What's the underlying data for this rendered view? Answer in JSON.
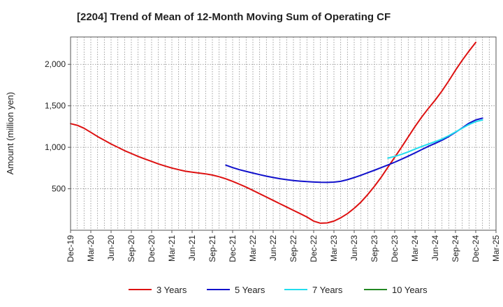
{
  "chart_data": {
    "type": "line",
    "title": "[2204]  Trend of Mean of 12-Month Moving Sum of Operating CF",
    "xlabel": "",
    "ylabel": "Amount (million yen)",
    "ylim": [
      0,
      2330
    ],
    "yticks": [
      500,
      1000,
      1500,
      2000
    ],
    "ytick_labels": [
      "500",
      "1,000",
      "1,500",
      "2,000"
    ],
    "xlim": [
      "2019-12",
      "2025-03"
    ],
    "xtick_labels": [
      "Dec-19",
      "Mar-20",
      "Jun-20",
      "Sep-20",
      "Dec-20",
      "Mar-21",
      "Jun-21",
      "Sep-21",
      "Dec-21",
      "Mar-22",
      "Jun-22",
      "Sep-22",
      "Dec-22",
      "Mar-23",
      "Jun-23",
      "Sep-23",
      "Dec-23",
      "Mar-24",
      "Jun-24",
      "Sep-24",
      "Dec-24",
      "Mar-25"
    ],
    "grid": true,
    "legend_position": "bottom",
    "series": [
      {
        "name": "3 Years",
        "color": "#dd1111",
        "points": [
          [
            "2019-12",
            1285
          ],
          [
            "2020-01",
            1265
          ],
          [
            "2020-02",
            1230
          ],
          [
            "2020-03",
            1180
          ],
          [
            "2020-04",
            1130
          ],
          [
            "2020-05",
            1085
          ],
          [
            "2020-06",
            1040
          ],
          [
            "2020-07",
            1000
          ],
          [
            "2020-08",
            960
          ],
          [
            "2020-09",
            925
          ],
          [
            "2020-10",
            890
          ],
          [
            "2020-11",
            860
          ],
          [
            "2020-12",
            830
          ],
          [
            "2021-01",
            800
          ],
          [
            "2021-02",
            775
          ],
          [
            "2021-03",
            750
          ],
          [
            "2021-04",
            730
          ],
          [
            "2021-05",
            712
          ],
          [
            "2021-06",
            700
          ],
          [
            "2021-07",
            690
          ],
          [
            "2021-08",
            680
          ],
          [
            "2021-09",
            665
          ],
          [
            "2021-10",
            645
          ],
          [
            "2021-11",
            620
          ],
          [
            "2021-12",
            590
          ],
          [
            "2022-01",
            555
          ],
          [
            "2022-02",
            520
          ],
          [
            "2022-03",
            480
          ],
          [
            "2022-04",
            440
          ],
          [
            "2022-05",
            400
          ],
          [
            "2022-06",
            360
          ],
          [
            "2022-07",
            320
          ],
          [
            "2022-08",
            280
          ],
          [
            "2022-09",
            240
          ],
          [
            "2022-10",
            200
          ],
          [
            "2022-11",
            160
          ],
          [
            "2022-12",
            110
          ],
          [
            "2023-01",
            85
          ],
          [
            "2023-02",
            88
          ],
          [
            "2023-03",
            110
          ],
          [
            "2023-04",
            150
          ],
          [
            "2023-05",
            200
          ],
          [
            "2023-06",
            265
          ],
          [
            "2023-07",
            340
          ],
          [
            "2023-08",
            430
          ],
          [
            "2023-09",
            530
          ],
          [
            "2023-10",
            640
          ],
          [
            "2023-11",
            760
          ],
          [
            "2023-12",
            880
          ],
          [
            "2024-01",
            1000
          ],
          [
            "2024-02",
            1125
          ],
          [
            "2024-03",
            1250
          ],
          [
            "2024-04",
            1365
          ],
          [
            "2024-05",
            1470
          ],
          [
            "2024-06",
            1570
          ],
          [
            "2024-07",
            1680
          ],
          [
            "2024-08",
            1800
          ],
          [
            "2024-09",
            1930
          ],
          [
            "2024-10",
            2050
          ],
          [
            "2024-11",
            2160
          ],
          [
            "2024-12",
            2265
          ]
        ]
      },
      {
        "name": "5 Years",
        "color": "#1111cc",
        "points": [
          [
            "2021-11",
            785
          ],
          [
            "2021-12",
            755
          ],
          [
            "2022-01",
            730
          ],
          [
            "2022-02",
            710
          ],
          [
            "2022-03",
            690
          ],
          [
            "2022-04",
            670
          ],
          [
            "2022-05",
            652
          ],
          [
            "2022-06",
            636
          ],
          [
            "2022-07",
            622
          ],
          [
            "2022-08",
            610
          ],
          [
            "2022-09",
            600
          ],
          [
            "2022-10",
            592
          ],
          [
            "2022-11",
            586
          ],
          [
            "2022-12",
            581
          ],
          [
            "2023-01",
            578
          ],
          [
            "2023-02",
            577
          ],
          [
            "2023-03",
            580
          ],
          [
            "2023-04",
            590
          ],
          [
            "2023-05",
            610
          ],
          [
            "2023-06",
            635
          ],
          [
            "2023-07",
            663
          ],
          [
            "2023-08",
            693
          ],
          [
            "2023-09",
            723
          ],
          [
            "2023-10",
            755
          ],
          [
            "2023-11",
            787
          ],
          [
            "2023-12",
            820
          ],
          [
            "2024-01",
            856
          ],
          [
            "2024-02",
            893
          ],
          [
            "2024-03",
            932
          ],
          [
            "2024-04",
            972
          ],
          [
            "2024-05",
            1012
          ],
          [
            "2024-06",
            1048
          ],
          [
            "2024-07",
            1085
          ],
          [
            "2024-08",
            1130
          ],
          [
            "2024-09",
            1180
          ],
          [
            "2024-10",
            1235
          ],
          [
            "2024-11",
            1290
          ],
          [
            "2024-12",
            1330
          ],
          [
            "2025-01",
            1352
          ]
        ]
      },
      {
        "name": "7 Years",
        "color": "#22ddee",
        "points": [
          [
            "2023-11",
            870
          ],
          [
            "2023-12",
            890
          ],
          [
            "2024-01",
            915
          ],
          [
            "2024-02",
            945
          ],
          [
            "2024-03",
            978
          ],
          [
            "2024-04",
            1010
          ],
          [
            "2024-05",
            1040
          ],
          [
            "2024-06",
            1068
          ],
          [
            "2024-07",
            1100
          ],
          [
            "2024-08",
            1140
          ],
          [
            "2024-09",
            1185
          ],
          [
            "2024-10",
            1230
          ],
          [
            "2024-11",
            1275
          ],
          [
            "2024-12",
            1310
          ],
          [
            "2025-01",
            1330
          ]
        ]
      },
      {
        "name": "10 Years",
        "color": "#228822",
        "points": []
      }
    ]
  }
}
